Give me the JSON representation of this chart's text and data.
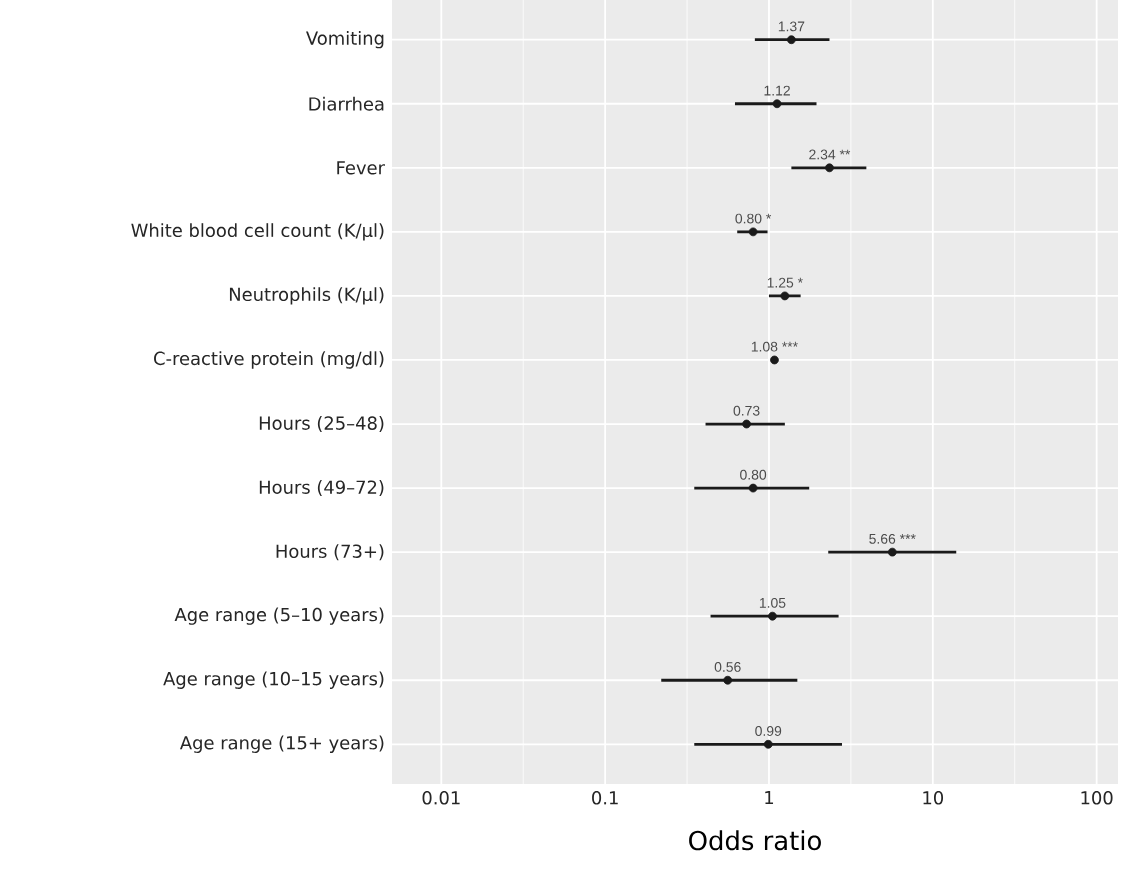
{
  "chart_data": {
    "type": "scatter",
    "orientation": "horizontal",
    "xlabel": "Odds ratio",
    "categories": [
      "Vomiting",
      "Diarrhea",
      "Fever",
      "White blood cell count (K/µl)",
      "Neutrophils (K/µl)",
      "C-reactive protein (mg/dl)",
      "Hours (25–48)",
      "Hours (49–72)",
      "Hours (73+)",
      "Age range (5–10 years)",
      "Age range (10–15 years)",
      "Age range (15+ years)"
    ],
    "values": [
      1.37,
      1.12,
      2.34,
      0.8,
      1.25,
      1.08,
      0.73,
      0.8,
      5.66,
      1.05,
      0.56,
      0.99
    ],
    "errors": [
      [
        0.82,
        2.34
      ],
      [
        0.62,
        1.95
      ],
      [
        1.37,
        3.93
      ],
      [
        0.64,
        0.98
      ],
      [
        1.0,
        1.56
      ],
      [
        1.06,
        1.1
      ],
      [
        0.41,
        1.25
      ],
      [
        0.35,
        1.76
      ],
      [
        2.3,
        13.9
      ],
      [
        0.44,
        2.66
      ],
      [
        0.22,
        1.49
      ],
      [
        0.35,
        2.79
      ]
    ],
    "value_labels": [
      "1.37",
      "1.12",
      "2.34 **",
      "0.80 *",
      "1.25 *",
      "1.08 ***",
      "0.73",
      "0.80",
      "5.66 ***",
      "1.05",
      "0.56",
      "0.99"
    ],
    "color": "#1a1a1a",
    "marker": "circle",
    "log": "x",
    "grid": true,
    "xlim": [
      0.005,
      135
    ],
    "xticks": [
      0.01,
      0.1,
      1,
      10,
      100
    ]
  }
}
